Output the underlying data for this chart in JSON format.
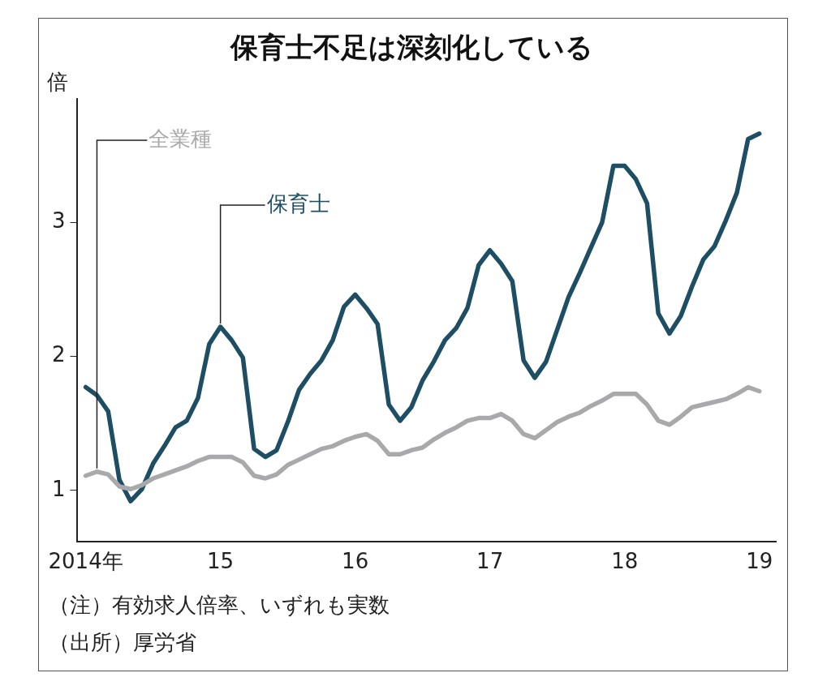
{
  "chart_data": {
    "type": "line",
    "title": "保育士不足は深刻化している",
    "ylabel": "倍",
    "annotations": [
      "（注）有効求人倍率、いずれも実数",
      "（出所）厚労省"
    ],
    "x": [
      "2014-01",
      "2014-02",
      "2014-03",
      "2014-04",
      "2014-05",
      "2014-06",
      "2014-07",
      "2014-08",
      "2014-09",
      "2014-10",
      "2014-11",
      "2014-12",
      "2015-01",
      "2015-02",
      "2015-03",
      "2015-04",
      "2015-05",
      "2015-06",
      "2015-07",
      "2015-08",
      "2015-09",
      "2015-10",
      "2015-11",
      "2015-12",
      "2016-01",
      "2016-02",
      "2016-03",
      "2016-04",
      "2016-05",
      "2016-06",
      "2016-07",
      "2016-08",
      "2016-09",
      "2016-10",
      "2016-11",
      "2016-12",
      "2017-01",
      "2017-02",
      "2017-03",
      "2017-04",
      "2017-05",
      "2017-06",
      "2017-07",
      "2017-08",
      "2017-09",
      "2017-10",
      "2017-11",
      "2017-12",
      "2018-01",
      "2018-02",
      "2018-03",
      "2018-04",
      "2018-05",
      "2018-06",
      "2018-07",
      "2018-08",
      "2018-09",
      "2018-10",
      "2018-11",
      "2018-12",
      "2019-01"
    ],
    "series": [
      {
        "name": "保育士",
        "color": "#1d4e63",
        "values": [
          1.77,
          1.71,
          1.59,
          1.08,
          0.92,
          1.01,
          1.2,
          1.33,
          1.47,
          1.52,
          1.69,
          2.09,
          2.22,
          2.12,
          1.99,
          1.31,
          1.25,
          1.3,
          1.51,
          1.75,
          1.87,
          1.97,
          2.12,
          2.37,
          2.46,
          2.36,
          2.24,
          1.64,
          1.52,
          1.62,
          1.82,
          1.96,
          2.12,
          2.21,
          2.36,
          2.68,
          2.79,
          2.69,
          2.56,
          1.97,
          1.84,
          1.96,
          2.2,
          2.44,
          2.62,
          2.81,
          3.0,
          3.42,
          3.42,
          3.32,
          3.14,
          2.32,
          2.17,
          2.3,
          2.52,
          2.72,
          2.82,
          3.01,
          3.22,
          3.62,
          3.66
        ]
      },
      {
        "name": "全業種",
        "color": "#a9a9ab",
        "values": [
          1.11,
          1.14,
          1.12,
          1.03,
          1.01,
          1.04,
          1.09,
          1.12,
          1.15,
          1.18,
          1.22,
          1.25,
          1.25,
          1.25,
          1.21,
          1.11,
          1.09,
          1.12,
          1.19,
          1.23,
          1.27,
          1.31,
          1.33,
          1.37,
          1.4,
          1.42,
          1.37,
          1.27,
          1.27,
          1.3,
          1.32,
          1.38,
          1.43,
          1.47,
          1.52,
          1.54,
          1.54,
          1.57,
          1.52,
          1.42,
          1.39,
          1.45,
          1.51,
          1.55,
          1.58,
          1.63,
          1.67,
          1.72,
          1.72,
          1.72,
          1.64,
          1.52,
          1.49,
          1.55,
          1.62,
          1.64,
          1.66,
          1.68,
          1.72,
          1.77,
          1.74
        ]
      }
    ],
    "xlim": [
      "2013-12-07",
      "2019-02-15"
    ],
    "xticks": [
      {
        "value": "2014-01",
        "label": "2014年"
      },
      {
        "value": "2015-01",
        "label": "15"
      },
      {
        "value": "2016-01",
        "label": "16"
      },
      {
        "value": "2017-01",
        "label": "17"
      },
      {
        "value": "2018-01",
        "label": "18"
      },
      {
        "value": "2019-01",
        "label": "19"
      }
    ],
    "ylim": [
      0.62,
      3.92
    ],
    "yticks": [
      1,
      2,
      3
    ],
    "marker": "none",
    "line_style": "solid"
  }
}
